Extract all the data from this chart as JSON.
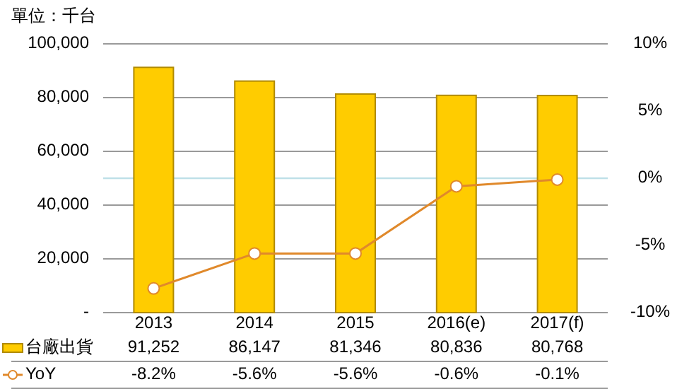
{
  "chart_data": {
    "type": "bar",
    "ylabel": "單位：千台",
    "categories": [
      "2013",
      "2014",
      "2015",
      "2016(e)",
      "2017(f)"
    ],
    "series": [
      {
        "name": "台廠出貨",
        "color": "#ffcc00",
        "values": [
          91252,
          86147,
          81346,
          80836,
          80768
        ],
        "value_labels": [
          "91,252",
          "86,147",
          "81,346",
          "80,836",
          "80,768"
        ]
      },
      {
        "name": "YoY",
        "type": "line",
        "axis": "y2",
        "color": "#e0892b",
        "marker": "circle",
        "values": [
          -8.2,
          -5.6,
          -5.6,
          -0.6,
          -0.1
        ],
        "value_labels": [
          "-8.2%",
          "-5.6%",
          "-5.6%",
          "-0.6%",
          "-0.1%"
        ]
      }
    ],
    "ylim": [
      0,
      100000
    ],
    "yticks": [
      {
        "value": 0,
        "label": "-"
      },
      {
        "value": 20000,
        "label": "20,000"
      },
      {
        "value": 40000,
        "label": "40,000"
      },
      {
        "value": 60000,
        "label": "60,000"
      },
      {
        "value": 80000,
        "label": "80,000"
      },
      {
        "value": 100000,
        "label": "100,000"
      }
    ],
    "y2lim": [
      -10,
      10
    ],
    "y2ticks": [
      {
        "value": -10,
        "label": "-10%"
      },
      {
        "value": -5,
        "label": "-5%"
      },
      {
        "value": 0,
        "label": "0%"
      },
      {
        "value": 5,
        "label": "5%"
      },
      {
        "value": 10,
        "label": "10%"
      }
    ],
    "ref_lines": [
      {
        "axis": "y2",
        "value": 0,
        "color": "#bfe0e8"
      }
    ],
    "grid": "y",
    "legend": "bottom"
  }
}
